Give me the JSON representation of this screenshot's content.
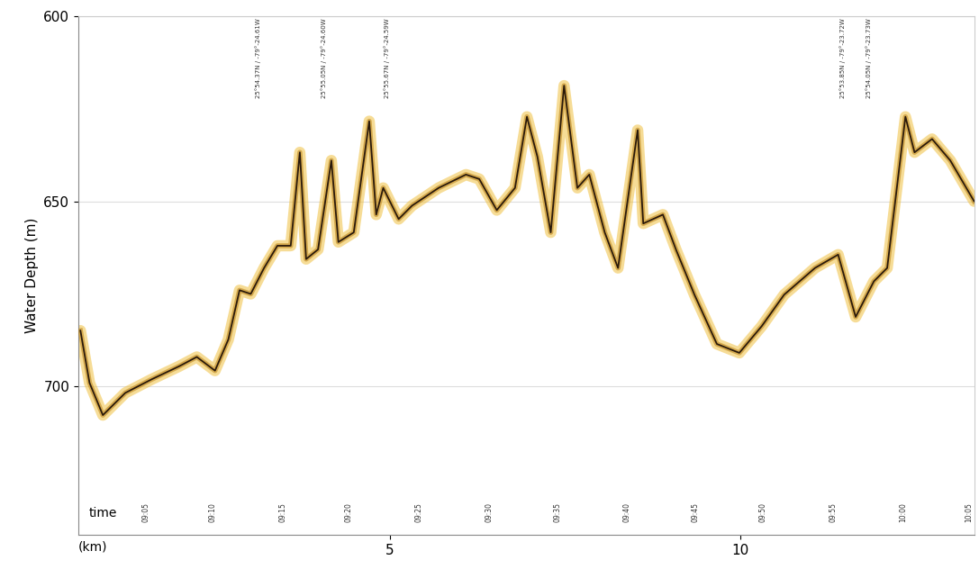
{
  "chart_data": {
    "type": "line",
    "y_label": "Water Depth (m)",
    "x_label": "(km)",
    "time_label": "time",
    "x": [
      0.59,
      0.72,
      0.91,
      1.23,
      1.61,
      2.0,
      2.25,
      2.51,
      2.7,
      2.86,
      3.02,
      3.21,
      3.4,
      3.59,
      3.72,
      3.81,
      3.98,
      4.17,
      4.27,
      4.49,
      4.71,
      4.81,
      4.91,
      5.13,
      5.32,
      5.7,
      6.09,
      6.28,
      6.53,
      6.79,
      6.96,
      7.11,
      7.3,
      7.49,
      7.68,
      7.85,
      8.07,
      8.26,
      8.54,
      8.62,
      8.9,
      9.09,
      9.35,
      9.67,
      9.99,
      10.31,
      10.63,
      11.07,
      11.4,
      11.65,
      11.91,
      12.1,
      12.36,
      12.49,
      12.74,
      13.0,
      13.34
    ],
    "values": [
      684.9,
      699,
      707.7,
      701.7,
      698,
      694.5,
      692,
      695.7,
      687.3,
      674,
      675,
      668,
      662,
      662,
      636.8,
      665.6,
      663,
      639,
      661,
      658.4,
      628.4,
      653.6,
      646.4,
      654.8,
      651.2,
      646.4,
      642.8,
      644,
      652.4,
      646.4,
      627.2,
      638,
      658.4,
      618.8,
      646.4,
      642.8,
      658.4,
      668,
      630.8,
      656,
      653.6,
      663.2,
      675.2,
      688.5,
      690.9,
      683.7,
      675.2,
      668,
      664.4,
      681.2,
      671.6,
      668,
      627.2,
      636.8,
      633.2,
      639,
      650
    ],
    "color": "#2b1a0a",
    "xlim": [
      0.56,
      13.34
    ],
    "ylim": [
      740,
      600
    ],
    "xticks": [
      5,
      10
    ],
    "yticks": [
      600,
      650,
      700
    ],
    "grid": "y",
    "time_marks": [
      {
        "x": 1.52,
        "label": "09:05"
      },
      {
        "x": 2.47,
        "label": "09:10"
      },
      {
        "x": 3.48,
        "label": "09:15"
      },
      {
        "x": 4.42,
        "label": "09:20"
      },
      {
        "x": 5.42,
        "label": "09:25"
      },
      {
        "x": 6.42,
        "label": "09:30"
      },
      {
        "x": 7.39,
        "label": "09:35"
      },
      {
        "x": 8.39,
        "label": "09:40"
      },
      {
        "x": 9.36,
        "label": "09:45"
      },
      {
        "x": 10.33,
        "label": "09:50"
      },
      {
        "x": 11.33,
        "label": "09:55"
      },
      {
        "x": 12.33,
        "label": "10:00"
      },
      {
        "x": 13.27,
        "label": "10:05"
      }
    ],
    "annotations": [
      {
        "x": 3.12,
        "text": "25°54.37N / -79°-24.61W"
      },
      {
        "x": 4.07,
        "text": "25°55.05N / -79°-24.60W"
      },
      {
        "x": 4.96,
        "text": "25°55.67N / -79°-24.59W"
      },
      {
        "x": 11.46,
        "text": "25°53.85N / -79°-23.72W"
      },
      {
        "x": 11.84,
        "text": "25°54.05N / -79°-23.73W"
      }
    ]
  }
}
